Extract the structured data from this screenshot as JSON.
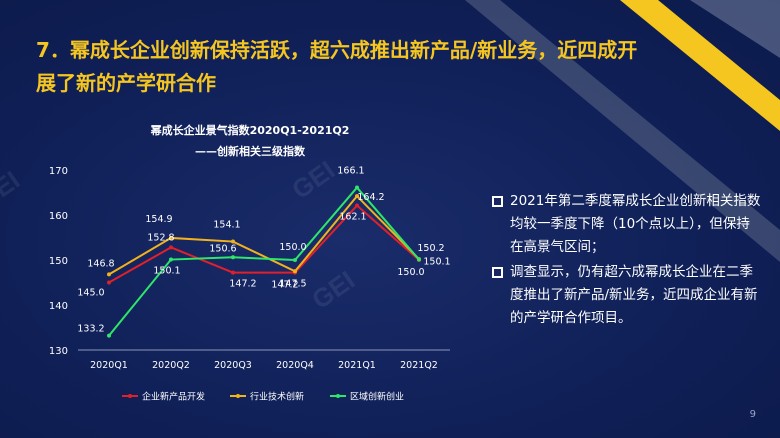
{
  "slide": {
    "title": "7．幂成长企业创新保持活跃，超六成推出新产品/新业务，近四成开展了新的产学研合作",
    "page_number": "9",
    "watermark_logo": "GEI 长城战略咨询",
    "accent_color": "#f5c520",
    "background_color": "#0f1e52"
  },
  "bullets": [
    {
      "text": "2021年第二季度幂成长企业创新相关指数均较一季度下降（10个点以上），但保持在高景气区间；",
      "icon": "square-bullet-icon"
    },
    {
      "text": "调查显示，仍有超六成幂成长企业在二季度推出了新产品/新业务，近四成企业有新的产学研合作项目。",
      "icon": "square-bullet-icon"
    }
  ],
  "chart_data": {
    "type": "line",
    "title": "幂成长企业景气指数2020Q1-2021Q2",
    "subtitle": "——创新相关三级指数",
    "categories": [
      "2020Q1",
      "2020Q2",
      "2020Q3",
      "2020Q4",
      "2021Q1",
      "2021Q2"
    ],
    "series": [
      {
        "name": "企业新产品开发",
        "color": "#e0202a",
        "values": [
          145.0,
          152.8,
          147.2,
          147.2,
          162.1,
          150.0
        ]
      },
      {
        "name": "行业技术创新",
        "color": "#f2b21c",
        "values": [
          146.8,
          154.9,
          154.1,
          147.5,
          164.2,
          150.2
        ]
      },
      {
        "name": "区域创新创业",
        "color": "#2ee66a",
        "values": [
          133.2,
          150.1,
          150.6,
          150.0,
          166.1,
          150.1
        ]
      }
    ],
    "ylim": [
      130,
      170
    ],
    "yticks": [
      130,
      140,
      150,
      160,
      170
    ],
    "grid": false,
    "legend_position": "bottom"
  }
}
